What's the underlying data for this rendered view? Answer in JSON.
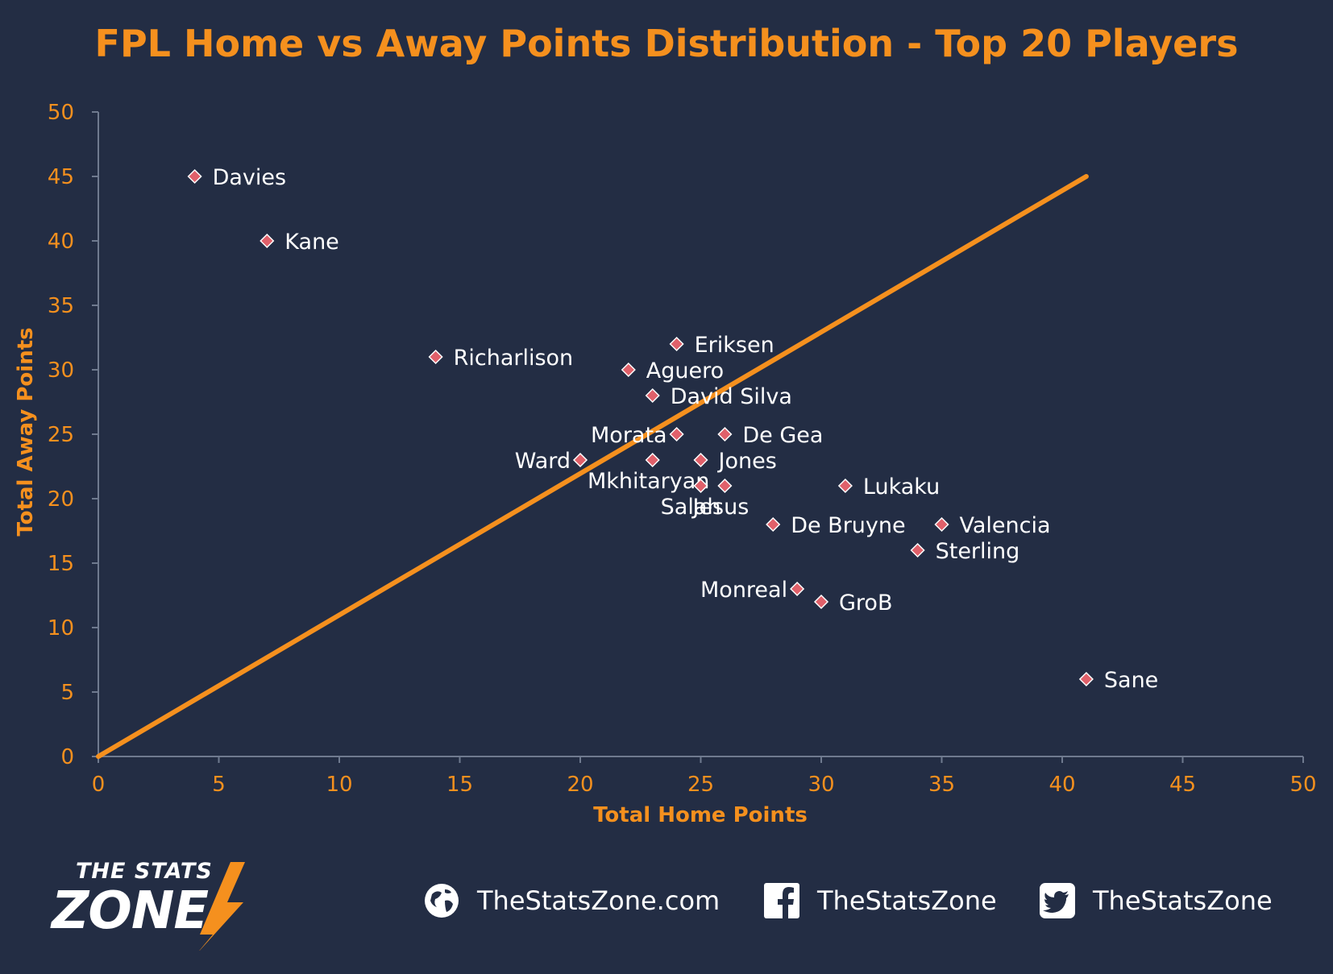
{
  "chart_data": {
    "type": "scatter",
    "title": "FPL Home vs Away Points Distribution - Top 20 Players",
    "xlabel": "Total Home Points",
    "ylabel": "Total Away Points",
    "xlim": [
      0,
      50
    ],
    "ylim": [
      0,
      50
    ],
    "xticks": [
      0,
      5,
      10,
      15,
      20,
      25,
      30,
      35,
      40,
      45,
      50
    ],
    "yticks": [
      0,
      5,
      10,
      15,
      20,
      25,
      30,
      35,
      40,
      45,
      50
    ],
    "grid": false,
    "legend": "none",
    "colors": {
      "text": "#f5901e",
      "line": "#f5901e",
      "marker": "#e0606a",
      "background": "#232d44"
    },
    "trendline": {
      "x": [
        0,
        41
      ],
      "y": [
        0,
        45
      ]
    },
    "points": [
      {
        "name": "Davies",
        "x": 4,
        "y": 45,
        "label_pos": "right"
      },
      {
        "name": "Kane",
        "x": 7,
        "y": 40,
        "label_pos": "right"
      },
      {
        "name": "Richarlison",
        "x": 14,
        "y": 31,
        "label_pos": "right"
      },
      {
        "name": "Eriksen",
        "x": 24,
        "y": 32,
        "label_pos": "right"
      },
      {
        "name": "Aguero",
        "x": 22,
        "y": 30,
        "label_pos": "right"
      },
      {
        "name": "David Silva",
        "x": 23,
        "y": 28,
        "label_pos": "right"
      },
      {
        "name": "Morata",
        "x": 24,
        "y": 25,
        "label_pos": "left"
      },
      {
        "name": "De Gea",
        "x": 26,
        "y": 25,
        "label_pos": "right"
      },
      {
        "name": "Ward",
        "x": 20,
        "y": 23,
        "label_pos": "left"
      },
      {
        "name": "Mkhitaryan",
        "x": 23,
        "y": 23,
        "label_pos": "below"
      },
      {
        "name": "Jones",
        "x": 25,
        "y": 23,
        "label_pos": "right"
      },
      {
        "name": "Salah",
        "x": 25,
        "y": 21,
        "label_pos": "below-left"
      },
      {
        "name": "Jesus",
        "x": 26,
        "y": 21,
        "label_pos": "below"
      },
      {
        "name": "Lukaku",
        "x": 31,
        "y": 21,
        "label_pos": "right"
      },
      {
        "name": "De Bruyne",
        "x": 28,
        "y": 18,
        "label_pos": "right"
      },
      {
        "name": "Valencia",
        "x": 35,
        "y": 18,
        "label_pos": "right"
      },
      {
        "name": "Sterling",
        "x": 34,
        "y": 16,
        "label_pos": "right"
      },
      {
        "name": "Monreal",
        "x": 29,
        "y": 13,
        "label_pos": "left"
      },
      {
        "name": "GroB",
        "x": 30,
        "y": 12,
        "label_pos": "right"
      },
      {
        "name": "Sane",
        "x": 41,
        "y": 6,
        "label_pos": "right"
      }
    ]
  },
  "footer": {
    "logo_top": "THE STATS",
    "logo_bottom": "ZONE",
    "website": "TheStatsZone.com",
    "facebook": "TheStatsZone",
    "twitter": "TheStatsZone"
  }
}
